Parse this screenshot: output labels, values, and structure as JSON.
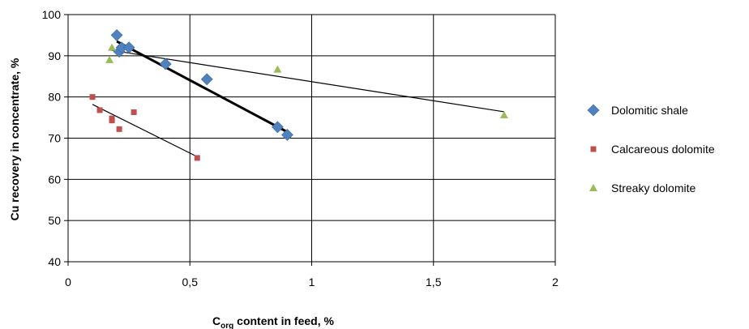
{
  "chart_data": {
    "type": "scatter",
    "xlabel": {
      "main": "C",
      "subscript": "org",
      "rest": " content in feed, %"
    },
    "ylabel": "Cu recovery in concentrate, %",
    "xlim": [
      0,
      2
    ],
    "ylim": [
      40,
      100
    ],
    "x_ticks": [
      {
        "value": 0,
        "label": "0"
      },
      {
        "value": 0.5,
        "label": "0,5"
      },
      {
        "value": 1,
        "label": "1"
      },
      {
        "value": 1.5,
        "label": "1,5"
      },
      {
        "value": 2,
        "label": "2"
      }
    ],
    "y_ticks": [
      {
        "value": 40,
        "label": "40"
      },
      {
        "value": 50,
        "label": "50"
      },
      {
        "value": 60,
        "label": "60"
      },
      {
        "value": 70,
        "label": "70"
      },
      {
        "value": 80,
        "label": "80"
      },
      {
        "value": 90,
        "label": "90"
      },
      {
        "value": 100,
        "label": "100"
      }
    ],
    "grid": {
      "horizontal": true,
      "vertical": true
    },
    "legend_position": "right",
    "series": [
      {
        "name": "Dolomitic shale",
        "marker": "diamond",
        "color": "#4f81bd",
        "points": [
          {
            "x": 0.2,
            "y": 95
          },
          {
            "x": 0.21,
            "y": 91
          },
          {
            "x": 0.22,
            "y": 92
          },
          {
            "x": 0.25,
            "y": 92
          },
          {
            "x": 0.4,
            "y": 88
          },
          {
            "x": 0.57,
            "y": 84.3
          },
          {
            "x": 0.86,
            "y": 72.7
          },
          {
            "x": 0.9,
            "y": 70.8
          }
        ],
        "trendline": {
          "x": [
            0.2,
            0.9
          ],
          "y": [
            93.5,
            71.5
          ],
          "width": 3
        }
      },
      {
        "name": "Calcareous dolomite",
        "marker": "square",
        "color": "#c0504d",
        "points": [
          {
            "x": 0.1,
            "y": 80
          },
          {
            "x": 0.13,
            "y": 76.8
          },
          {
            "x": 0.18,
            "y": 74.8
          },
          {
            "x": 0.18,
            "y": 74.3
          },
          {
            "x": 0.21,
            "y": 72.2
          },
          {
            "x": 0.27,
            "y": 76.3
          },
          {
            "x": 0.53,
            "y": 65.2
          }
        ],
        "trendline": {
          "x": [
            0.1,
            0.53
          ],
          "y": [
            78.2,
            65.5
          ],
          "width": 1.2
        }
      },
      {
        "name": "Streaky dolomite",
        "marker": "triangle",
        "color": "#9bbb59",
        "points": [
          {
            "x": 0.17,
            "y": 89
          },
          {
            "x": 0.18,
            "y": 92
          },
          {
            "x": 0.86,
            "y": 86.7
          },
          {
            "x": 1.79,
            "y": 75.6
          }
        ],
        "trendline": {
          "x": [
            0.17,
            1.79
          ],
          "y": [
            91.4,
            76.4
          ],
          "width": 1.2
        }
      }
    ]
  }
}
